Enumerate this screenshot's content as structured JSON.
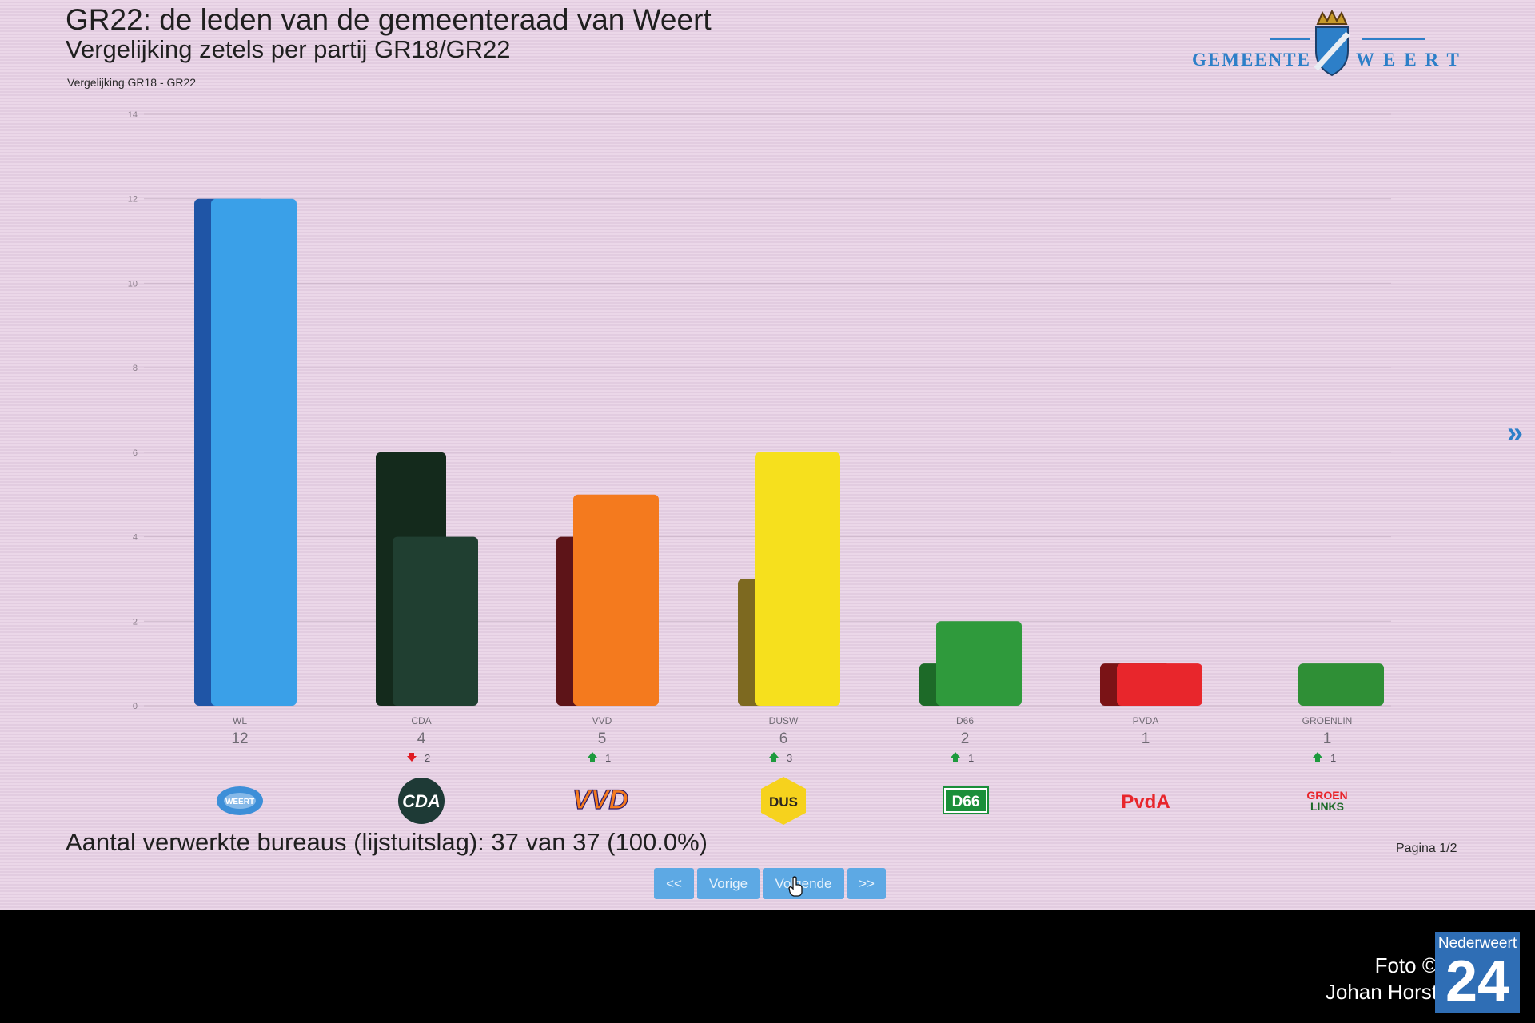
{
  "screen": {
    "title": "GR22: de leden van de gemeenteraad van Weert",
    "subtitle": "Vergelijking zetels per partij GR18/GR22",
    "caption": "Vergelijking GR18 - GR22",
    "logo_left": "GEMEENTE",
    "logo_right": "WEERT",
    "next_icon": "double-chevron-right-icon",
    "footer_text": "Aantal verwerkte bureaus (lijstuitslag): 37 van 37 (100.0%)",
    "page_indicator": "Pagina 1/2",
    "pager": {
      "first": "<<",
      "prev": "Vorige",
      "next": "Volgende",
      "last": ">>"
    }
  },
  "chart_data": {
    "type": "bar",
    "ylim": [
      0,
      14
    ],
    "yticks": [
      0,
      2,
      4,
      6,
      8,
      10,
      12,
      14
    ],
    "grid": true,
    "categories": [
      "WL",
      "CDA",
      "VVD",
      "DUSW",
      "D66",
      "PVDA",
      "GROENLIN"
    ],
    "series": [
      {
        "values": [
          12,
          6,
          4,
          3,
          1,
          1,
          0
        ],
        "colors": [
          "#1f55a6",
          "#142a1c",
          "#5d1418",
          "#7d6920",
          "#1d6a28",
          "#7a1316",
          "#1d6a28"
        ]
      },
      {
        "values": [
          12,
          4,
          5,
          6,
          2,
          1,
          1
        ],
        "colors": [
          "#3aa0e8",
          "#203f31",
          "#f47a1e",
          "#f6e01d",
          "#2f9a3c",
          "#e8262c",
          "#2f8f36"
        ]
      }
    ],
    "value_labels": [
      "12",
      "4",
      "5",
      "6",
      "2",
      "1",
      "1"
    ],
    "change_labels": [
      "",
      "2",
      "1",
      "3",
      "1",
      "",
      "1"
    ],
    "change_direction": [
      "",
      "down",
      "up",
      "up",
      "up",
      "",
      "up"
    ],
    "change_colors": {
      "up": "#1d9a3d",
      "down": "#e01b24"
    },
    "party_logos": [
      {
        "icon": "weert-lokaal-logo-icon",
        "text": "WEERT",
        "color": "#3d8fd8"
      },
      {
        "icon": "cda-logo-icon",
        "text": "CDA",
        "color": "#1e3a36"
      },
      {
        "icon": "vvd-logo-icon",
        "text": "VVD",
        "color": "#f47a1e"
      },
      {
        "icon": "dus-logo-icon",
        "text": "DUS",
        "color": "#f6d21d"
      },
      {
        "icon": "d66-logo-icon",
        "text": "D66",
        "color": "#1a8f3a"
      },
      {
        "icon": "pvda-logo-icon",
        "text": "PvdA",
        "color": "#e8262c"
      },
      {
        "icon": "groenlinks-logo-icon",
        "text": "GROEN LINKS",
        "color": "#e8262c"
      }
    ]
  },
  "credit": {
    "line1": "Foto ©",
    "line2": "Johan Horst",
    "brand_name": "Nederweert",
    "brand_number": "24"
  }
}
